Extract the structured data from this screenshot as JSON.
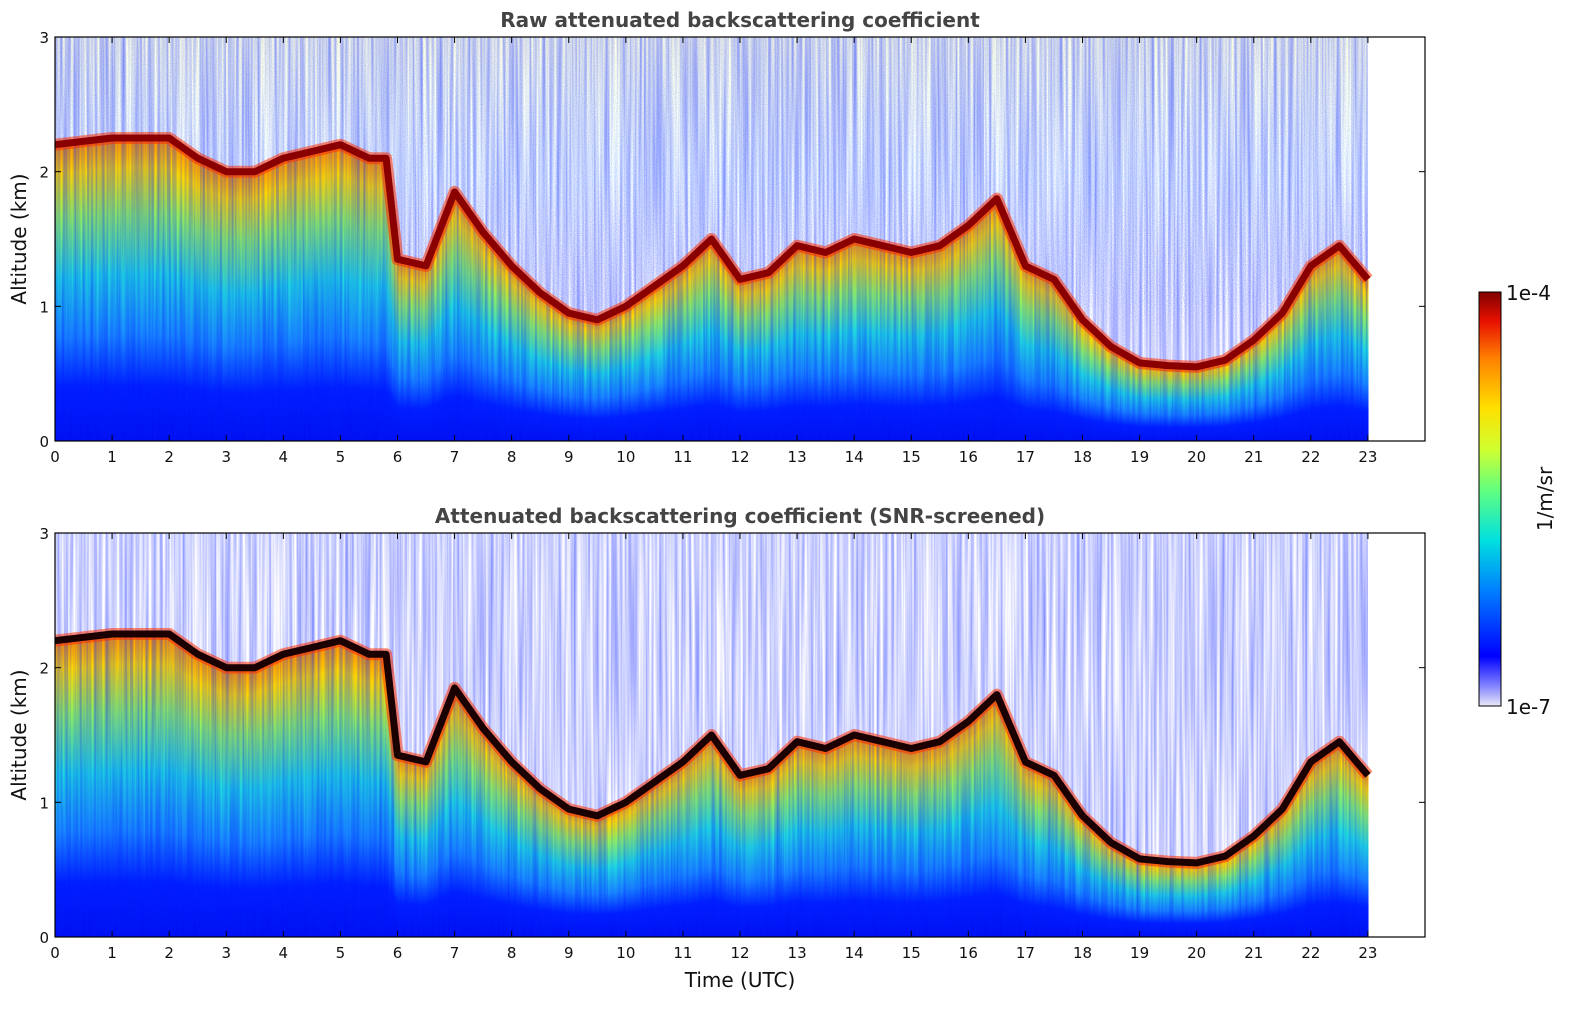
{
  "chart_data": [
    {
      "type": "heatmap",
      "title": "Raw attenuated backscattering coefficient",
      "xlabel": "",
      "ylabel": "Altitude (km)",
      "xlim": [
        0,
        24
      ],
      "ylim": [
        0,
        3
      ],
      "xticks": [
        "0",
        "1",
        "2",
        "3",
        "4",
        "5",
        "6",
        "7",
        "8",
        "9",
        "10",
        "11",
        "12",
        "13",
        "14",
        "15",
        "16",
        "17",
        "18",
        "19",
        "20",
        "21",
        "22",
        "23"
      ],
      "yticks": [
        "0",
        "1",
        "2",
        "3"
      ],
      "data_end_hour": 23,
      "screened": false,
      "cloud_layer": {
        "description_units": "hour / km",
        "x": [
          0,
          1,
          2,
          2.5,
          3,
          3.5,
          4,
          4.5,
          5,
          5.5,
          5.8,
          6,
          6.5,
          7,
          7.5,
          8,
          8.5,
          9,
          9.5,
          10,
          10.5,
          11,
          11.5,
          12,
          12.5,
          13,
          13.5,
          14,
          14.5,
          15,
          15.5,
          16,
          16.5,
          17,
          17.5,
          18,
          18.5,
          19,
          19.5,
          20,
          20.5,
          21,
          21.5,
          22,
          22.5,
          23
        ],
        "y": [
          2.2,
          2.25,
          2.25,
          2.1,
          2.0,
          2.0,
          2.1,
          2.15,
          2.2,
          2.1,
          2.1,
          1.35,
          1.3,
          1.85,
          1.55,
          1.3,
          1.1,
          0.95,
          0.9,
          1.0,
          1.15,
          1.3,
          1.5,
          1.2,
          1.25,
          1.45,
          1.4,
          1.5,
          1.45,
          1.4,
          1.45,
          1.6,
          1.8,
          1.3,
          1.2,
          0.9,
          0.7,
          0.58,
          0.56,
          0.55,
          0.6,
          0.75,
          0.95,
          1.3,
          1.45,
          1.2
        ]
      }
    },
    {
      "type": "heatmap",
      "title": "Attenuated backscattering coefficient (SNR-screened)",
      "xlabel": "Time (UTC)",
      "ylabel": "Altitude (km)",
      "xlim": [
        0,
        24
      ],
      "ylim": [
        0,
        3
      ],
      "xticks": [
        "0",
        "1",
        "2",
        "3",
        "4",
        "5",
        "6",
        "7",
        "8",
        "9",
        "10",
        "11",
        "12",
        "13",
        "14",
        "15",
        "16",
        "17",
        "18",
        "19",
        "20",
        "21",
        "22",
        "23"
      ],
      "yticks": [
        "0",
        "1",
        "2",
        "3"
      ],
      "data_end_hour": 23,
      "screened": true,
      "cloud_layer": {
        "description_units": "hour / km",
        "x": [
          0,
          1,
          2,
          2.5,
          3,
          3.5,
          4,
          4.5,
          5,
          5.5,
          5.8,
          6,
          6.5,
          7,
          7.5,
          8,
          8.5,
          9,
          9.5,
          10,
          10.5,
          11,
          11.5,
          12,
          12.5,
          13,
          13.5,
          14,
          14.5,
          15,
          15.5,
          16,
          16.5,
          17,
          17.5,
          18,
          18.5,
          19,
          19.5,
          20,
          20.5,
          21,
          21.5,
          22,
          22.5,
          23
        ],
        "y": [
          2.2,
          2.25,
          2.25,
          2.1,
          2.0,
          2.0,
          2.1,
          2.15,
          2.2,
          2.1,
          2.1,
          1.35,
          1.3,
          1.85,
          1.55,
          1.3,
          1.1,
          0.95,
          0.9,
          1.0,
          1.15,
          1.3,
          1.5,
          1.2,
          1.25,
          1.45,
          1.4,
          1.5,
          1.45,
          1.4,
          1.45,
          1.6,
          1.8,
          1.3,
          1.2,
          0.9,
          0.7,
          0.58,
          0.56,
          0.55,
          0.6,
          0.75,
          0.95,
          1.3,
          1.45,
          1.2
        ]
      }
    }
  ],
  "colorbar": {
    "label": "1/m/sr",
    "max_label": "1e-4",
    "min_label": "1e-7",
    "colors": [
      "#e8e8f8",
      "#8080ff",
      "#0000ff",
      "#0080ff",
      "#00e0e0",
      "#60ff80",
      "#d0ff30",
      "#ffe000",
      "#ff8000",
      "#e81000",
      "#800000"
    ]
  }
}
